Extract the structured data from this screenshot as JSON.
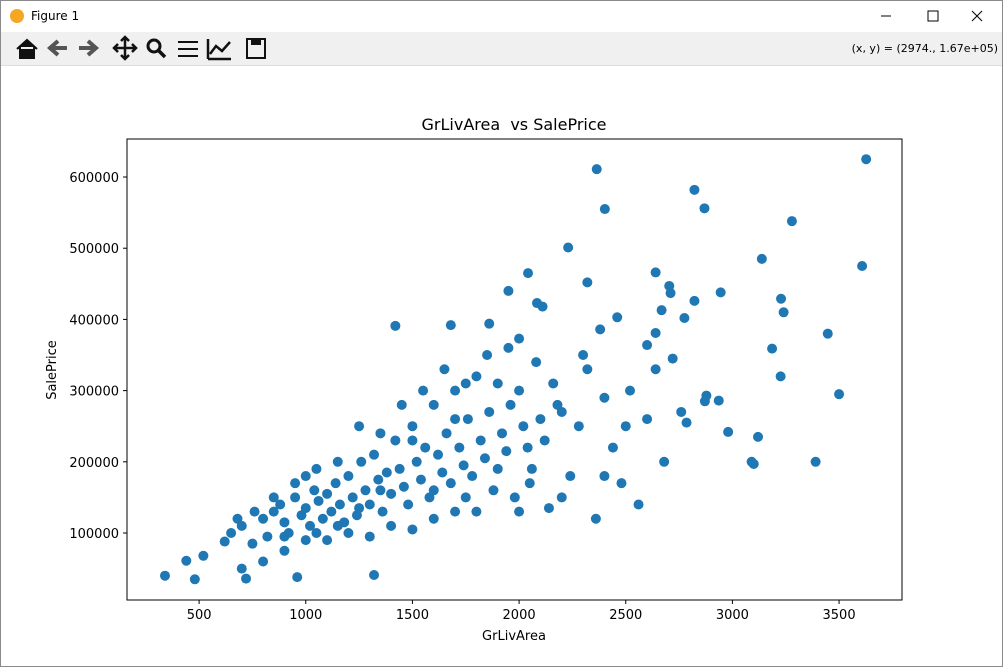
{
  "window": {
    "title": "Figure 1",
    "status": "(x, y) = (2974., 1.67e+05)"
  },
  "chart_data": {
    "type": "scatter",
    "title": "GrLivArea  vs SalePrice",
    "x_label": "GrLivArea",
    "y_label": "SalePrice",
    "color": "#1f77b4",
    "xlim": [
      162,
      3795
    ],
    "ylim": [
      5900,
      653400
    ],
    "xticks": [
      500,
      1000,
      1500,
      2000,
      2500,
      3000,
      3500
    ],
    "yticks": [
      100000,
      200000,
      300000,
      400000,
      500000,
      600000
    ],
    "x": [
      3627,
      2364,
      2822,
      2402,
      2869,
      3279,
      2230,
      3138,
      3608,
      2640,
      2042,
      2320,
      2704,
      2945,
      2710,
      1950,
      3228,
      2822,
      2084,
      2460,
      3240,
      2668,
      2380,
      2775,
      2110,
      3447,
      2640,
      1680,
      1420,
      2000,
      3186,
      2600,
      1860,
      3500,
      3390,
      3090,
      3100,
      3120,
      2980,
      2871,
      2878,
      2936,
      2785,
      3226,
      1000,
      440,
      340,
      480,
      520,
      1320,
      960,
      720,
      620,
      650,
      700,
      750,
      800,
      820,
      850,
      880,
      900,
      920,
      950,
      980,
      1000,
      1020,
      1040,
      1060,
      1080,
      1100,
      1120,
      1140,
      1160,
      1180,
      1200,
      1220,
      1240,
      1260,
      1280,
      1300,
      1320,
      1340,
      1360,
      1380,
      1400,
      1420,
      1440,
      1460,
      1480,
      1500,
      1520,
      1540,
      1560,
      1580,
      1600,
      1620,
      1640,
      1660,
      1680,
      1700,
      1720,
      1740,
      1760,
      1780,
      1800,
      1820,
      1840,
      1860,
      1880,
      1900,
      1920,
      1940,
      1960,
      1980,
      2000,
      2020,
      2040,
      2060,
      2080,
      2100,
      2120,
      2140,
      2160,
      2200,
      2240,
      2280,
      2320,
      2360,
      2400,
      2440,
      2480,
      2520,
      2560,
      2600,
      2640,
      2680,
      2720,
      2760,
      1100,
      1200,
      1300,
      1400,
      1500,
      1700,
      900,
      800,
      700,
      1250,
      1350,
      1450,
      1550,
      1650,
      1750,
      1850,
      1950,
      1150,
      1050,
      950,
      850,
      760,
      680,
      1600,
      1800,
      2000,
      2200,
      2400,
      2500,
      2300,
      2180,
      1900,
      1700,
      1500,
      1350,
      1250,
      1150,
      1050,
      1000,
      900,
      1600,
      1750,
      2050
    ],
    "values": [
      625000,
      611000,
      582000,
      555000,
      556000,
      538000,
      501000,
      485000,
      475000,
      466000,
      465000,
      452000,
      447000,
      438000,
      437000,
      440000,
      429000,
      426000,
      423000,
      403000,
      410000,
      413000,
      386000,
      402000,
      418000,
      380000,
      381000,
      392000,
      391000,
      373000,
      359000,
      364000,
      394000,
      295000,
      200000,
      200000,
      197000,
      235000,
      242000,
      285000,
      293000,
      286000,
      255000,
      320000,
      180000,
      61000,
      40000,
      35000,
      68000,
      41000,
      38000,
      36000,
      88000,
      100000,
      110000,
      85000,
      120000,
      95000,
      130000,
      140000,
      115000,
      100000,
      150000,
      125000,
      135000,
      110000,
      160000,
      145000,
      120000,
      155000,
      130000,
      170000,
      140000,
      115000,
      180000,
      150000,
      125000,
      200000,
      160000,
      140000,
      210000,
      175000,
      130000,
      185000,
      155000,
      230000,
      190000,
      165000,
      140000,
      250000,
      200000,
      175000,
      220000,
      150000,
      280000,
      210000,
      185000,
      240000,
      170000,
      300000,
      220000,
      195000,
      260000,
      180000,
      320000,
      230000,
      205000,
      270000,
      160000,
      310000,
      240000,
      215000,
      280000,
      150000,
      300000,
      250000,
      220000,
      190000,
      340000,
      260000,
      230000,
      135000,
      310000,
      270000,
      180000,
      250000,
      330000,
      120000,
      290000,
      220000,
      170000,
      300000,
      140000,
      260000,
      330000,
      200000,
      345000,
      270000,
      90000,
      100000,
      95000,
      110000,
      105000,
      130000,
      75000,
      60000,
      50000,
      250000,
      240000,
      280000,
      300000,
      330000,
      310000,
      350000,
      360000,
      200000,
      190000,
      170000,
      150000,
      130000,
      120000,
      120000,
      130000,
      130000,
      150000,
      180000,
      250000,
      350000,
      280000,
      190000,
      260000,
      230000,
      160000,
      135000,
      110000,
      100000,
      90000,
      95000,
      160000,
      150000,
      170000
    ]
  }
}
